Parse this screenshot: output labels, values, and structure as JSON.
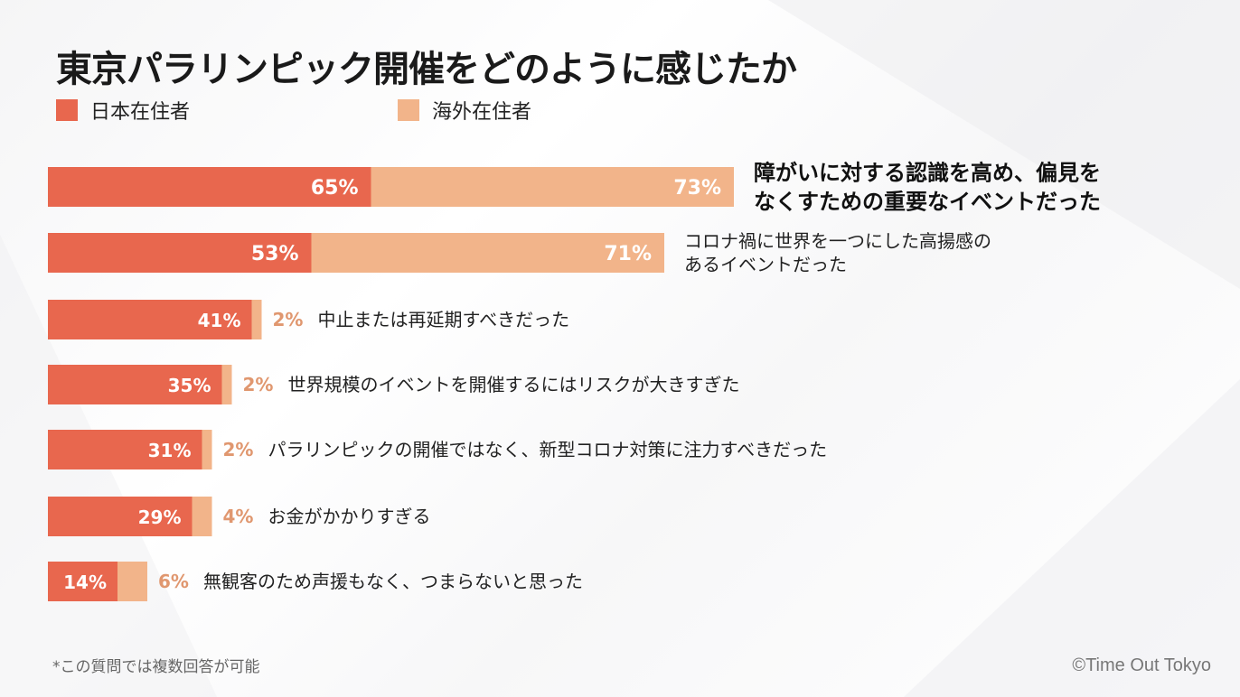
{
  "title": "東京パラリンピック開催をどのように感じたか",
  "footnote": "*この質問では複数回答が可能",
  "credit": "©Time Out Tokyo",
  "colors": {
    "domestic": "#E8674E",
    "overseas": "#F2B48A",
    "overseas_label": "#E0976F"
  },
  "chart_data": {
    "type": "bar",
    "orientation": "horizontal",
    "stacked": true,
    "legend_placement": "top-left",
    "categories": [
      "障がいに対する認識を高め、偏見をなくすための重要なイベントだった",
      "コロナ禍に世界を一つにした高揚感のあるイベントだった",
      "中止または再延期すべきだった",
      "世界規模のイベントを開催するにはリスクが大きすぎた",
      "パラリンピックの開催ではなく、新型コロナ対策に注力すべきだった",
      "お金がかかりすぎる",
      "無観客のため声援もなく、つまらないと思った"
    ],
    "category_lines": [
      [
        "障がいに対する認識を高め、偏見を",
        "なくすための重要なイベントだった"
      ],
      [
        "コロナ禍に世界を一つにした高揚感の",
        "あるイベントだった"
      ],
      [
        "中止または再延期すべきだった"
      ],
      [
        "世界規模のイベントを開催するにはリスクが大きすぎた"
      ],
      [
        "パラリンピックの開催ではなく、新型コロナ対策に注力すべきだった"
      ],
      [
        "お金がかかりすぎる"
      ],
      [
        "無観客のため声援もなく、つまらないと思った"
      ]
    ],
    "series": [
      {
        "name": "日本在住者",
        "values": [
          65,
          53,
          41,
          35,
          31,
          29,
          14
        ]
      },
      {
        "name": "海外在住者",
        "values": [
          73,
          71,
          2,
          2,
          2,
          4,
          6
        ]
      }
    ],
    "unit": "%"
  }
}
